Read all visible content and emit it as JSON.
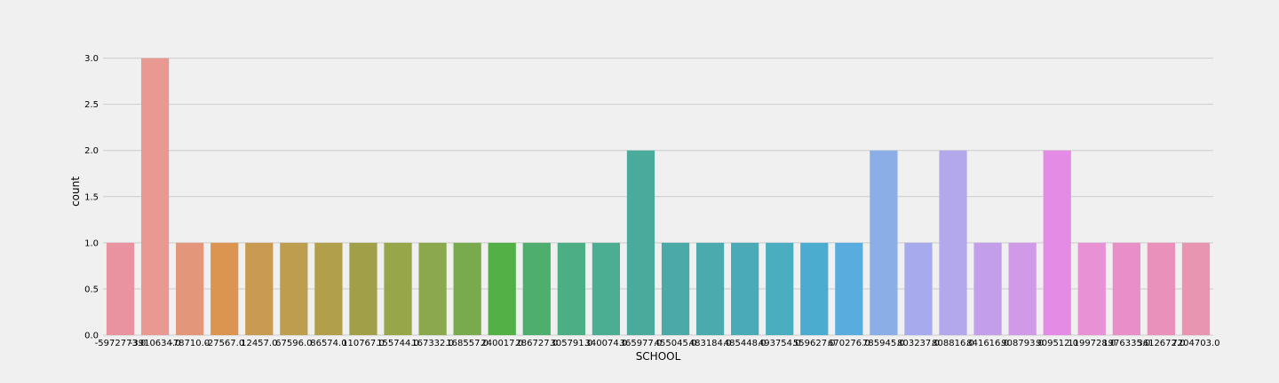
{
  "chart_data": {
    "type": "bar",
    "xlabel": "SCHOOL",
    "ylabel": "count",
    "ylim": [
      0,
      3.15
    ],
    "yticks": [
      "0.0",
      "0.5",
      "1.0",
      "1.5",
      "2.0",
      "2.5",
      "3.0"
    ],
    "grid": true,
    "categories": [
      "-5972773.0",
      "-3910634.0",
      "-78710.0",
      "-27567.0",
      "12457.0",
      "67596.0",
      "86574.0",
      "110767.0",
      "155744.0",
      "167332.0",
      "168557.0",
      "240017.0",
      "286727.0",
      "305791.0",
      "340074.0",
      "365977.0",
      "455045.0",
      "483184.0",
      "485448.0",
      "493754.0",
      "559627.0",
      "670276.0",
      "785945.0",
      "803237.0",
      "808816.0",
      "841616.0",
      "908793.0",
      "909512.0",
      "1199728.0",
      "1976335.0",
      "3612672.0",
      "7204703.0"
    ],
    "values": [
      1,
      3,
      1,
      1,
      1,
      1,
      1,
      1,
      1,
      1,
      1,
      1,
      1,
      1,
      1,
      2,
      1,
      1,
      1,
      1,
      1,
      1,
      2,
      1,
      2,
      1,
      1,
      2,
      1,
      1,
      1,
      1
    ],
    "colors": [
      "#e8939f",
      "#e89a92",
      "#e4967a",
      "#dc9550",
      "#c99a51",
      "#bd9e4e",
      "#b19f4c",
      "#a29f49",
      "#97a649",
      "#8ca84c",
      "#7aaa4e",
      "#52b047",
      "#4dae6e",
      "#4bae85",
      "#4bae93",
      "#4aab9c",
      "#4ba9a7",
      "#4baaae",
      "#4aaab6",
      "#4baec0",
      "#4bacd0",
      "#58adde",
      "#8baee6",
      "#a7aaec",
      "#b4a8ec",
      "#c39fea",
      "#d19ae8",
      "#e38be5",
      "#e891d4",
      "#e98fc8",
      "#e991bb",
      "#e895b1"
    ]
  }
}
